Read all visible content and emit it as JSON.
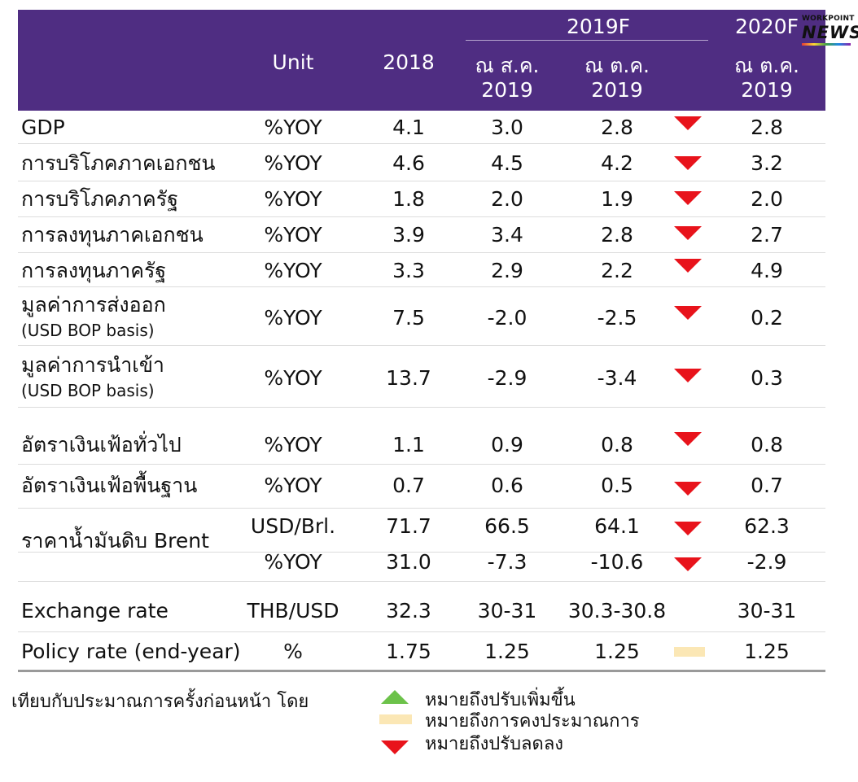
{
  "header": {
    "unit": "Unit",
    "y2018": "2018",
    "f2019": "2019F",
    "f2020": "2020F",
    "aug_line1": "ณ ส.ค.",
    "aug_line2": "2019",
    "oct_line1": "ณ ต.ค.",
    "oct_line2": "2019",
    "oct2020_line1": "ณ ต.ค.",
    "oct2020_line2": "2019"
  },
  "logo": {
    "top": "WORKPOINT",
    "main": "NEWS"
  },
  "rows": [
    {
      "label": "GDP",
      "unit": "%YOY",
      "v2018": "4.1",
      "aug": "3.0",
      "oct": "2.8",
      "v2020": "2.8",
      "indicator": "down"
    },
    {
      "label": "การบริโภคภาคเอกชน",
      "unit": "%YOY",
      "v2018": "4.6",
      "aug": "4.5",
      "oct": "4.2",
      "v2020": "3.2",
      "indicator": "down"
    },
    {
      "label": "การบริโภคภาครัฐ",
      "unit": "%YOY",
      "v2018": "1.8",
      "aug": "2.0",
      "oct": "1.9",
      "v2020": "2.0",
      "indicator": "down"
    },
    {
      "label": "การลงทุนภาคเอกชน",
      "unit": "%YOY",
      "v2018": "3.9",
      "aug": "3.4",
      "oct": "2.8",
      "v2020": "2.7",
      "indicator": "down"
    },
    {
      "label": "การลงทุนภาครัฐ",
      "unit": "%YOY",
      "v2018": "3.3",
      "aug": "2.9",
      "oct": "2.2",
      "v2020": "4.9",
      "indicator": "down"
    },
    {
      "label": "มูลค่าการส่งออก",
      "sublabel": "(USD BOP basis)",
      "unit": "%YOY",
      "v2018": "7.5",
      "aug": "-2.0",
      "oct": "-2.5",
      "v2020": "0.2",
      "indicator": "down"
    },
    {
      "label": "มูลค่าการนำเข้า",
      "sublabel": "(USD BOP basis)",
      "unit": "%YOY",
      "v2018": "13.7",
      "aug": "-2.9",
      "oct": "-3.4",
      "v2020": "0.3",
      "indicator": "down"
    },
    {
      "label": "อัตราเงินเฟ้อทั่วไป",
      "unit": "%YOY",
      "v2018": "1.1",
      "aug": "0.9",
      "oct": "0.8",
      "v2020": "0.8",
      "indicator": "down"
    },
    {
      "label": "อัตราเงินเฟ้อพื้นฐาน",
      "unit": "%YOY",
      "v2018": "0.7",
      "aug": "0.6",
      "oct": "0.5",
      "v2020": "0.7",
      "indicator": "down"
    },
    {
      "label": "ราคาน้ำมันดิบ Brent",
      "unit": "USD/Brl.",
      "v2018": "71.7",
      "aug": "66.5",
      "oct": "64.1",
      "v2020": "62.3",
      "indicator": "down"
    },
    {
      "label": "",
      "unit": "%YOY",
      "v2018": "31.0",
      "aug": "-7.3",
      "oct": "-10.6",
      "v2020": "-2.9",
      "indicator": "down"
    },
    {
      "label": "Exchange rate",
      "unit": "THB/USD",
      "v2018": "32.3",
      "aug": "30-31",
      "oct": "30.3-30.8",
      "v2020": "30-31",
      "indicator": "none"
    },
    {
      "label": "Policy rate (end-year)",
      "unit": "%",
      "v2018": "1.75",
      "aug": "1.25",
      "oct": "1.25",
      "v2020": "1.25",
      "indicator": "flat"
    }
  ],
  "legend": {
    "intro": "เทียบกับประมาณการครั้งก่อนหน้า โดย",
    "up": "หมายถึงปรับเพิ่มขึ้น",
    "flat": "หมายถึงการคงประมาณการ",
    "down": "หมายถึงปรับลดลง"
  },
  "colors": {
    "header_bg": "#4f2d82",
    "down": "#e8131b",
    "up": "#6cc24a",
    "flat": "#fbe7b5"
  }
}
